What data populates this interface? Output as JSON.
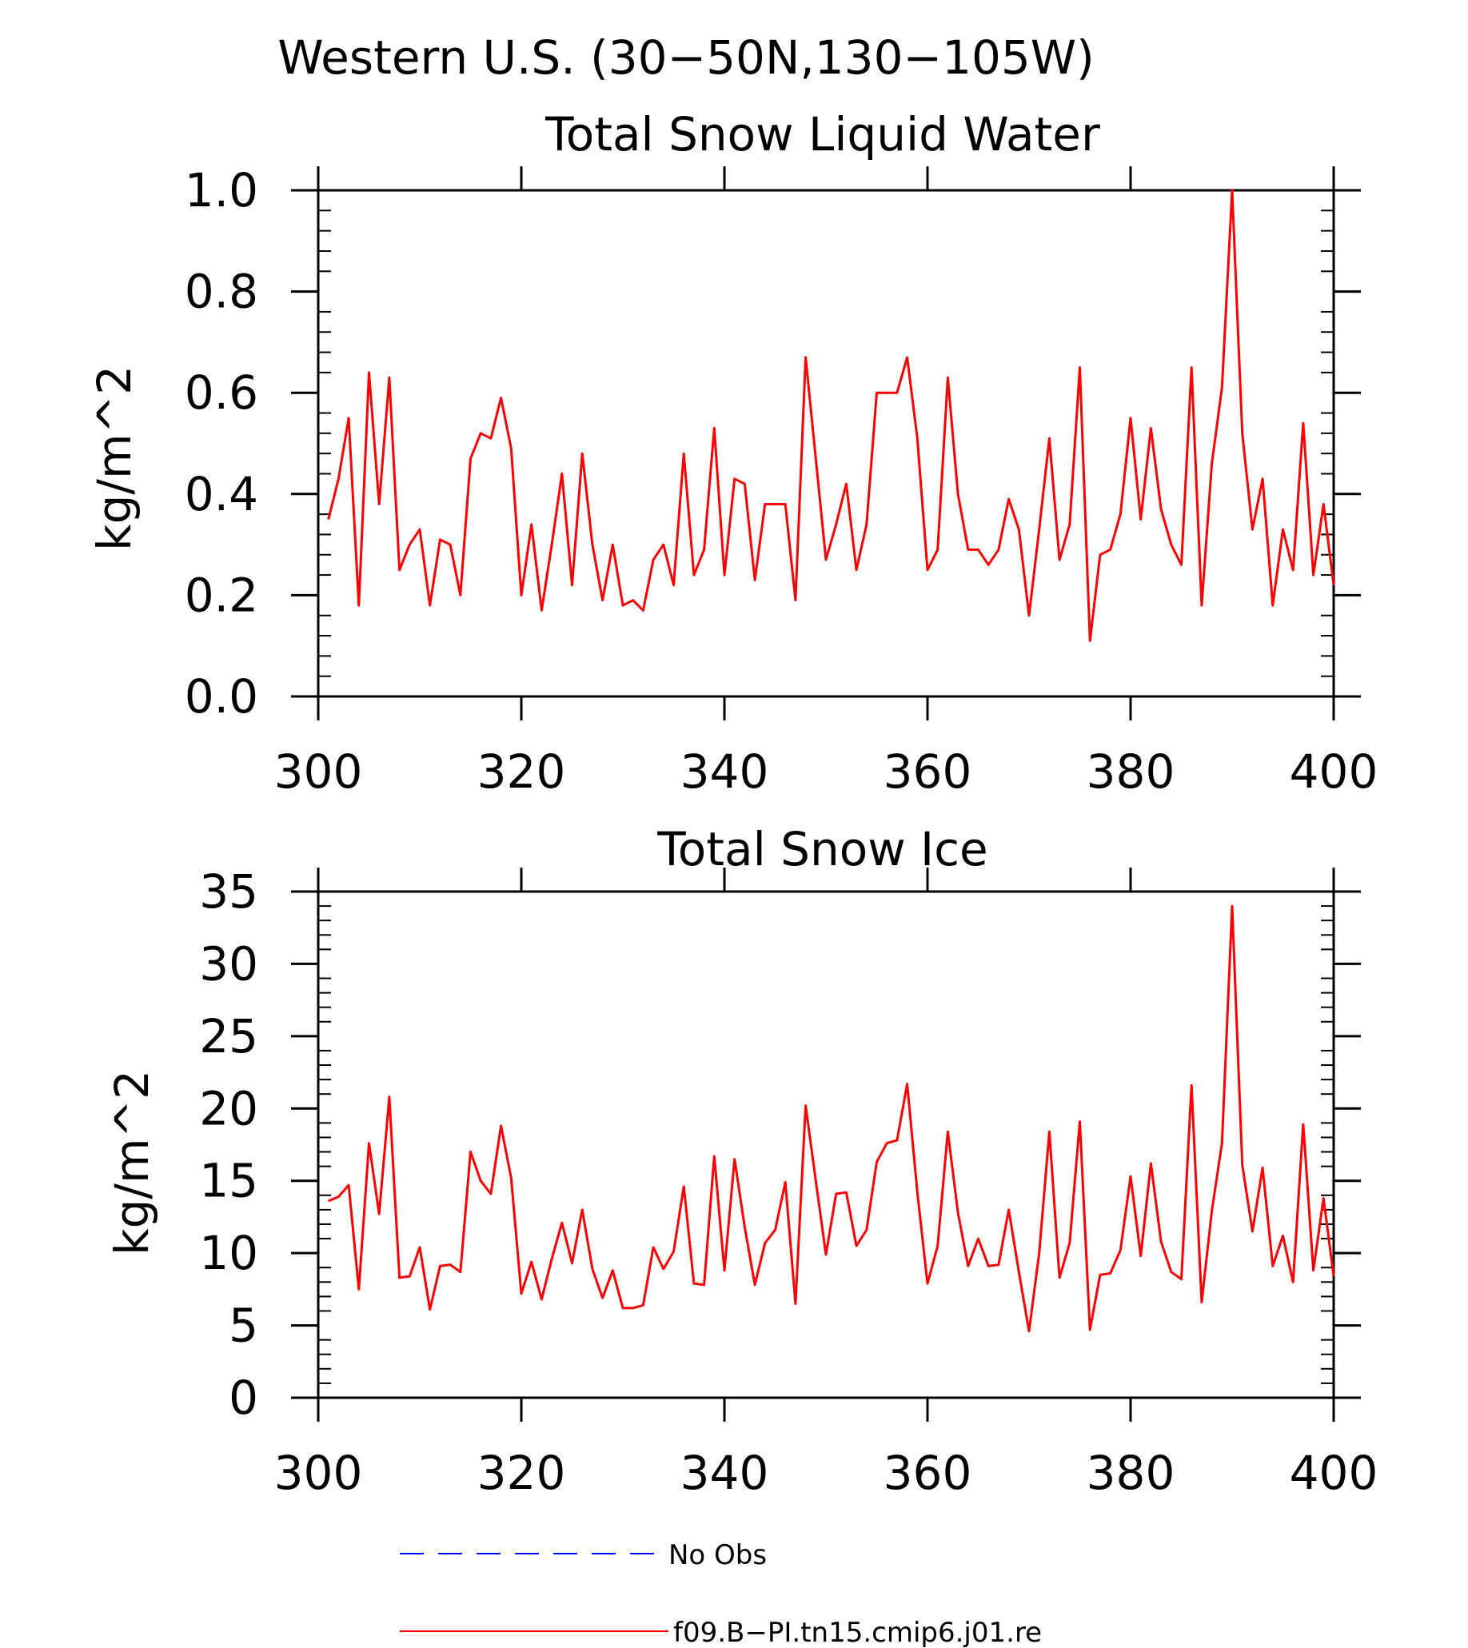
{
  "figure": {
    "title": "Western U.S. (30−50N,130−105W)"
  },
  "colors": {
    "model_line": "#ff0000",
    "obs_line": "#0000ff",
    "axes": "#000000",
    "background": "#ffffff"
  },
  "chart_data": [
    {
      "type": "line",
      "title": "Total Snow Liquid Water",
      "xlabel": "",
      "ylabel": "kg/m^2",
      "xlim": [
        300,
        400
      ],
      "ylim": [
        0.0,
        1.0
      ],
      "xticks": [
        300,
        320,
        340,
        360,
        380,
        400
      ],
      "xtick_labels": [
        "300",
        "320",
        "340",
        "360",
        "380",
        "400"
      ],
      "yticks": [
        0.0,
        0.2,
        0.4,
        0.6,
        0.8,
        1.0
      ],
      "ytick_labels": [
        "0.0",
        "0.2",
        "0.4",
        "0.6",
        "0.8",
        "1.0"
      ],
      "grid": false,
      "x_start": 301,
      "x_step": 1,
      "series": [
        {
          "name": "f09.B−PI.tn15.cmip6.j01.re",
          "color": "#ff0000",
          "values": [
            0.35,
            0.43,
            0.55,
            0.18,
            0.64,
            0.38,
            0.63,
            0.25,
            0.3,
            0.33,
            0.18,
            0.31,
            0.3,
            0.2,
            0.47,
            0.52,
            0.51,
            0.59,
            0.49,
            0.2,
            0.34,
            0.17,
            0.3,
            0.44,
            0.22,
            0.48,
            0.3,
            0.19,
            0.3,
            0.18,
            0.19,
            0.17,
            0.27,
            0.3,
            0.22,
            0.48,
            0.24,
            0.29,
            0.53,
            0.24,
            0.43,
            0.42,
            0.23,
            0.38,
            0.38,
            0.38,
            0.19,
            0.67,
            0.47,
            0.27,
            0.34,
            0.42,
            0.25,
            0.34,
            0.6,
            0.6,
            0.6,
            0.67,
            0.51,
            0.25,
            0.29,
            0.63,
            0.4,
            0.29,
            0.29,
            0.26,
            0.29,
            0.39,
            0.33,
            0.16,
            0.33,
            0.51,
            0.27,
            0.34,
            0.65,
            0.11,
            0.28,
            0.29,
            0.36,
            0.55,
            0.35,
            0.53,
            0.37,
            0.3,
            0.26,
            0.65,
            0.18,
            0.46,
            0.61,
            1.0,
            0.52,
            0.33,
            0.43,
            0.18,
            0.33,
            0.25,
            0.54,
            0.24,
            0.38,
            0.22
          ]
        }
      ]
    },
    {
      "type": "line",
      "title": "Total Snow Ice",
      "xlabel": "",
      "ylabel": "kg/m^2",
      "xlim": [
        300,
        400
      ],
      "ylim": [
        0,
        35
      ],
      "xticks": [
        300,
        320,
        340,
        360,
        380,
        400
      ],
      "xtick_labels": [
        "300",
        "320",
        "340",
        "360",
        "380",
        "400"
      ],
      "yticks": [
        0,
        5,
        10,
        15,
        20,
        25,
        30,
        35
      ],
      "ytick_labels": [
        "0",
        "5",
        "10",
        "15",
        "20",
        "25",
        "30",
        "35"
      ],
      "grid": false,
      "x_start": 301,
      "x_step": 1,
      "series": [
        {
          "name": "f09.B−PI.tn15.cmip6.j01.re",
          "color": "#ff0000",
          "values": [
            13.6,
            13.9,
            14.7,
            7.5,
            17.6,
            12.7,
            20.8,
            8.3,
            8.4,
            10.4,
            6.1,
            9.1,
            9.2,
            8.7,
            17.0,
            15.0,
            14.1,
            18.8,
            15.2,
            7.2,
            9.4,
            6.8,
            9.6,
            12.1,
            9.3,
            13.0,
            8.9,
            6.9,
            8.8,
            6.2,
            6.2,
            6.4,
            10.4,
            8.9,
            10.1,
            14.6,
            7.9,
            7.8,
            16.7,
            8.8,
            16.5,
            11.8,
            7.8,
            10.7,
            11.6,
            14.9,
            6.5,
            20.2,
            15.0,
            9.9,
            14.1,
            14.2,
            10.5,
            11.6,
            16.3,
            17.6,
            17.8,
            21.7,
            14.2,
            7.9,
            10.5,
            18.4,
            12.8,
            9.1,
            11.0,
            9.1,
            9.2,
            13.0,
            8.7,
            4.6,
            10.0,
            18.4,
            8.3,
            10.7,
            19.1,
            4.7,
            8.5,
            8.6,
            10.2,
            15.3,
            9.8,
            16.2,
            10.8,
            8.7,
            8.2,
            21.6,
            6.6,
            12.9,
            17.6,
            34.0,
            16.1,
            11.5,
            15.9,
            9.1,
            11.2,
            8.0,
            18.9,
            8.8,
            13.8,
            8.4
          ]
        }
      ]
    }
  ],
  "legend": {
    "items": [
      {
        "label": "No Obs",
        "color": "#0000ff",
        "dash": true
      },
      {
        "label": "f09.B−PI.tn15.cmip6.j01.re",
        "color": "#ff0000",
        "dash": false
      }
    ]
  }
}
